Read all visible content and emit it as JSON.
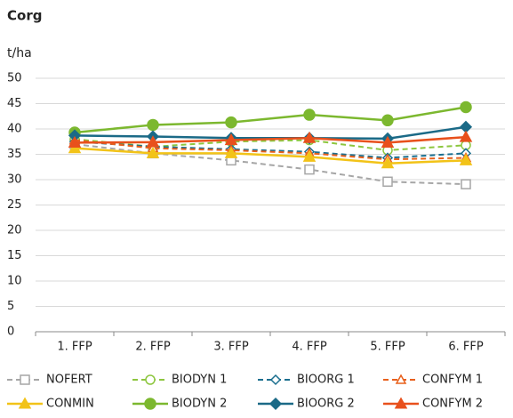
{
  "chart_data": {
    "type": "line",
    "title": "Corg",
    "y_label": "t/ha",
    "categories": [
      "1. FFP",
      "2. FFP",
      "3. FFP",
      "4. FFP",
      "5. FFP",
      "6. FFP"
    ],
    "ylim": [
      0,
      50
    ],
    "yticks": [
      0,
      5,
      10,
      15,
      20,
      25,
      30,
      35,
      40,
      45,
      50
    ],
    "grid": true,
    "series": [
      {
        "name": "NOFERT",
        "color": "#a6a6a6",
        "dashed": true,
        "marker": "square",
        "filled": false,
        "values": [
          37,
          35.2,
          33.8,
          32,
          29.6,
          29.1
        ]
      },
      {
        "name": "BIODYN 1",
        "color": "#8dc63f",
        "dashed": true,
        "marker": "circle",
        "filled": false,
        "values": [
          38,
          36.5,
          37.5,
          37.8,
          35.8,
          36.8
        ]
      },
      {
        "name": "BIOORG 1",
        "color": "#1b6f8f",
        "dashed": true,
        "marker": "diamond",
        "filled": false,
        "values": [
          37.5,
          36.5,
          36,
          35.5,
          34.3,
          35.2
        ]
      },
      {
        "name": "CONFYM 1",
        "color": "#e8601c",
        "dashed": true,
        "marker": "triangle",
        "filled": false,
        "values": [
          37.8,
          36.2,
          35.8,
          35.2,
          34,
          34.3
        ]
      },
      {
        "name": "CONMIN",
        "color": "#f2c318",
        "dashed": false,
        "marker": "triangle",
        "filled": true,
        "values": [
          36.2,
          35.2,
          35.2,
          34.5,
          33.2,
          33.8
        ]
      },
      {
        "name": "BIODYN 2",
        "color": "#7cb82f",
        "dashed": false,
        "marker": "circle",
        "filled": true,
        "values": [
          39.3,
          40.8,
          41.3,
          42.8,
          41.7,
          44.3
        ]
      },
      {
        "name": "BIOORG 2",
        "color": "#1b6a87",
        "dashed": false,
        "marker": "diamond",
        "filled": true,
        "values": [
          38.7,
          38.5,
          38.2,
          38.2,
          38.1,
          40.4
        ]
      },
      {
        "name": "CONFYM 2",
        "color": "#e8501c",
        "dashed": false,
        "marker": "triangle",
        "filled": true,
        "values": [
          37.3,
          37.4,
          37.8,
          38.2,
          37.3,
          38.4
        ]
      }
    ]
  }
}
